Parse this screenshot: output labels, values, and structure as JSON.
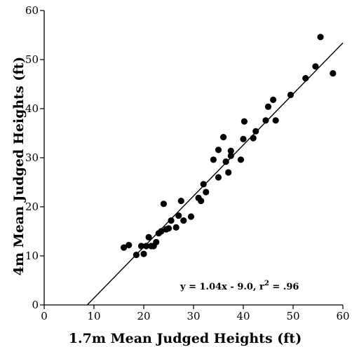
{
  "chart_data": {
    "type": "scatter",
    "title": "",
    "xlabel": "1.7m Mean Judged Heights (ft)",
    "ylabel": "4m Mean Judged Heights (ft)",
    "xlim": [
      0,
      60
    ],
    "ylim": [
      0,
      60
    ],
    "x_ticks": [
      "0",
      "10",
      "20",
      "30",
      "40",
      "50",
      "60"
    ],
    "y_ticks": [
      "0",
      "10",
      "20",
      "30",
      "40",
      "50",
      "60"
    ],
    "grid": false,
    "points": [
      {
        "x": 16.0,
        "y": 11.7
      },
      {
        "x": 17.0,
        "y": 12.2
      },
      {
        "x": 18.5,
        "y": 10.2
      },
      {
        "x": 19.5,
        "y": 12.0
      },
      {
        "x": 20.0,
        "y": 10.4
      },
      {
        "x": 20.5,
        "y": 12.0
      },
      {
        "x": 21.0,
        "y": 13.8
      },
      {
        "x": 21.5,
        "y": 12.0
      },
      {
        "x": 22.0,
        "y": 12.0
      },
      {
        "x": 22.5,
        "y": 12.8
      },
      {
        "x": 23.0,
        "y": 14.6
      },
      {
        "x": 23.5,
        "y": 15.0
      },
      {
        "x": 24.0,
        "y": 20.6
      },
      {
        "x": 24.5,
        "y": 15.4
      },
      {
        "x": 25.0,
        "y": 15.6
      },
      {
        "x": 25.5,
        "y": 17.2
      },
      {
        "x": 26.5,
        "y": 15.8
      },
      {
        "x": 27.0,
        "y": 18.2
      },
      {
        "x": 27.5,
        "y": 21.2
      },
      {
        "x": 28.0,
        "y": 17.2
      },
      {
        "x": 29.5,
        "y": 18.0
      },
      {
        "x": 31.0,
        "y": 21.8
      },
      {
        "x": 31.5,
        "y": 21.2
      },
      {
        "x": 32.0,
        "y": 24.6
      },
      {
        "x": 32.5,
        "y": 23.0
      },
      {
        "x": 34.0,
        "y": 29.6
      },
      {
        "x": 35.0,
        "y": 26.0
      },
      {
        "x": 35.0,
        "y": 31.6
      },
      {
        "x": 36.0,
        "y": 34.2
      },
      {
        "x": 36.5,
        "y": 29.2
      },
      {
        "x": 37.0,
        "y": 27.0
      },
      {
        "x": 37.5,
        "y": 31.4
      },
      {
        "x": 37.5,
        "y": 30.4
      },
      {
        "x": 39.5,
        "y": 29.6
      },
      {
        "x": 40.0,
        "y": 33.8
      },
      {
        "x": 40.2,
        "y": 37.4
      },
      {
        "x": 42.0,
        "y": 34.0
      },
      {
        "x": 42.5,
        "y": 35.4
      },
      {
        "x": 44.5,
        "y": 37.6
      },
      {
        "x": 45.0,
        "y": 40.4
      },
      {
        "x": 46.0,
        "y": 41.8
      },
      {
        "x": 46.5,
        "y": 37.6
      },
      {
        "x": 49.5,
        "y": 42.8
      },
      {
        "x": 52.5,
        "y": 46.2
      },
      {
        "x": 54.5,
        "y": 48.6
      },
      {
        "x": 55.5,
        "y": 54.6
      },
      {
        "x": 58.0,
        "y": 47.2
      }
    ],
    "fit": {
      "slope": 1.04,
      "intercept": -9.0,
      "x_range": [
        8.65,
        60
      ]
    },
    "annotation": "y = 1.04x - 9.0, r",
    "annotation_exponent": "2",
    "annotation_tail": " = .96"
  }
}
